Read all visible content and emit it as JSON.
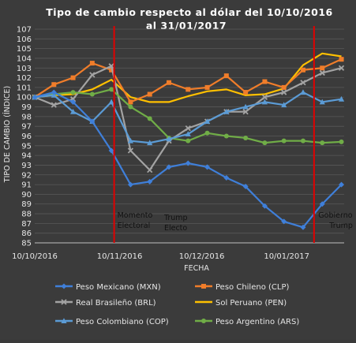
{
  "chart_data": {
    "type": "line",
    "title_line1": "Tipo de cambio respecto al dólar del 10/10/2016",
    "title_line2": "al 31/01/2017",
    "xlabel": "FECHA",
    "ylabel": "TIPO DE CAMBIO (ÍNDICE)",
    "ylim": [
      85,
      107
    ],
    "yticks": [
      85,
      86,
      87,
      88,
      89,
      90,
      91,
      92,
      93,
      94,
      95,
      96,
      97,
      98,
      99,
      100,
      101,
      102,
      103,
      104,
      105,
      106,
      107
    ],
    "xlim": [
      "2016-10-10",
      "2017-01-31"
    ],
    "xticks": [
      "10/10/2016",
      "10/11/2016",
      "10/12/2016",
      "10/01/2017"
    ],
    "grid": true,
    "legend_position": "bottom",
    "vlines": [
      {
        "x": "2016-11-08",
        "color": "#e00000"
      },
      {
        "x": "2017-01-20",
        "color": "#e00000"
      }
    ],
    "annotations": [
      {
        "line1": "Momento",
        "line2": "Electoral",
        "x": "2016-11-08",
        "y": 87.0
      },
      {
        "line1": "Trump",
        "line2": "Electo",
        "x": "2016-11-28",
        "y": 86.8
      },
      {
        "line1": "Gobierno",
        "line2": "Trump",
        "x": "2017-01-21",
        "y": 87.0
      }
    ],
    "x": [
      "2016-10-10",
      "2016-10-17",
      "2016-10-24",
      "2016-10-31",
      "2016-11-07",
      "2016-11-14",
      "2016-11-21",
      "2016-11-28",
      "2016-12-05",
      "2016-12-12",
      "2016-12-19",
      "2016-12-26",
      "2017-01-02",
      "2017-01-09",
      "2017-01-16",
      "2017-01-23",
      "2017-01-30"
    ],
    "series": [
      {
        "name": "Peso Mexicano (MXN)",
        "color": "#3f7fd9",
        "marker": "diamond",
        "values": [
          100.0,
          100.5,
          99.5,
          97.5,
          94.5,
          91.0,
          91.3,
          92.8,
          93.2,
          92.8,
          91.7,
          90.8,
          88.8,
          87.2,
          86.6,
          89.0,
          91.0
        ]
      },
      {
        "name": "Peso Chileno (CLP)",
        "color": "#f07d2a",
        "marker": "square",
        "values": [
          100.0,
          101.3,
          102.0,
          103.5,
          102.8,
          99.5,
          100.3,
          101.5,
          100.8,
          101.0,
          102.2,
          100.5,
          101.6,
          101.0,
          102.8,
          103.0,
          103.9
        ]
      },
      {
        "name": "Real Brasileño (BRL)",
        "color": "#a3a3a3",
        "marker": "x",
        "values": [
          100.0,
          99.2,
          99.8,
          102.3,
          103.2,
          94.5,
          92.5,
          95.5,
          96.8,
          97.5,
          98.5,
          98.5,
          100.0,
          100.5,
          101.5,
          102.5,
          103.0
        ]
      },
      {
        "name": "Sol Peruano (PEN)",
        "color": "#ffc000",
        "marker": "none",
        "values": [
          100.0,
          100.2,
          100.3,
          100.8,
          101.8,
          100.0,
          99.5,
          99.5,
          100.1,
          100.6,
          100.8,
          100.2,
          100.3,
          100.9,
          103.3,
          104.5,
          104.2
        ]
      },
      {
        "name": "Peso Colombiano (COP)",
        "color": "#5b9bd5",
        "marker": "triangle",
        "values": [
          100.0,
          100.2,
          98.5,
          97.5,
          99.5,
          95.5,
          95.3,
          95.7,
          96.2,
          97.5,
          98.5,
          99.0,
          99.5,
          99.2,
          100.5,
          99.5,
          99.8
        ]
      },
      {
        "name": "Peso Argentino (ARS)",
        "color": "#70ad47",
        "marker": "circle",
        "values": [
          100.0,
          100.3,
          100.5,
          100.3,
          100.8,
          99.0,
          97.8,
          95.8,
          95.5,
          96.3,
          96.0,
          95.8,
          95.3,
          95.5,
          95.5,
          95.3,
          95.4
        ]
      }
    ]
  }
}
